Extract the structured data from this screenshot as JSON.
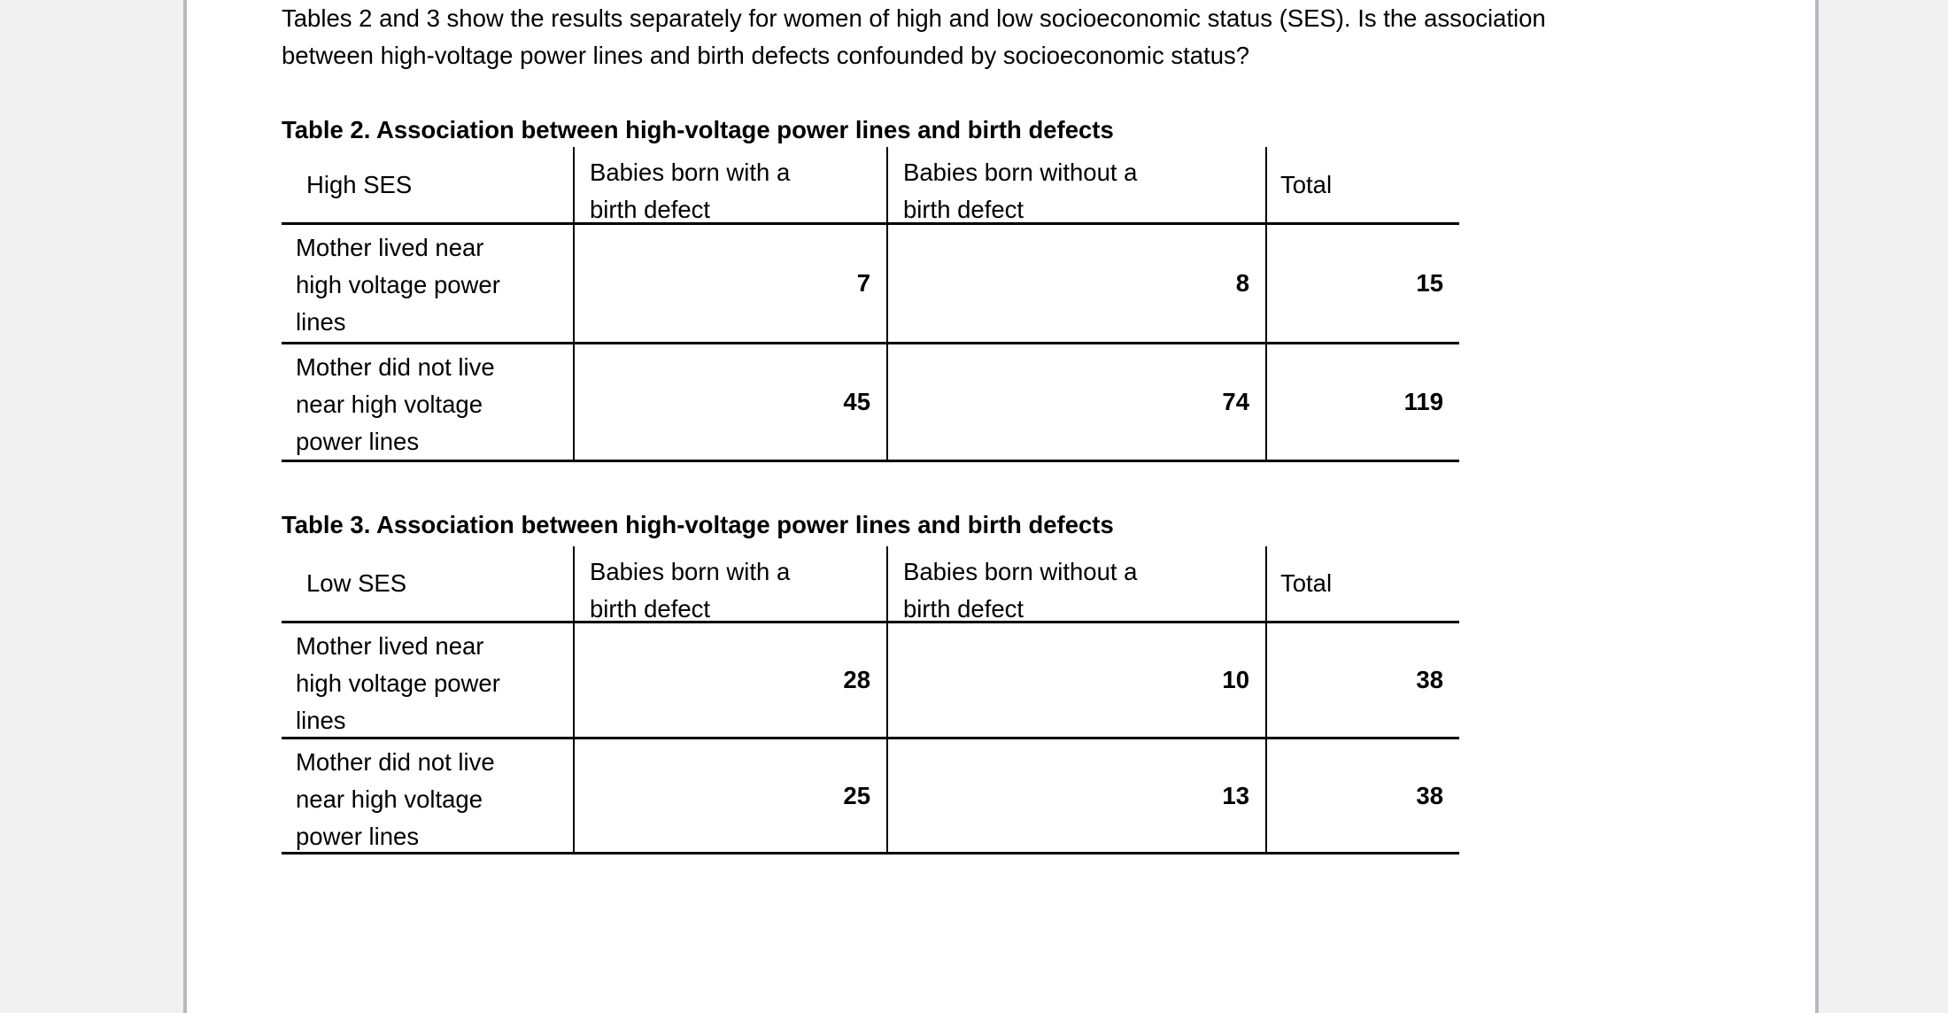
{
  "page": {
    "background_color": "#ffffff",
    "gutter_color": "#f1f1f2",
    "gutter_line_color": "#b5bac1",
    "border_color": "#000000"
  },
  "intro": {
    "lines": [
      "Tables 2 and 3 show the results separately for women of high and low socioeconomic status (SES). Is the association",
      "between high-voltage power lines and birth defects confounded by socioeconomic status?"
    ]
  },
  "tables": [
    {
      "title": "Table 2. Association between high-voltage power lines and birth defects",
      "group_label": "High SES",
      "col_headers": [
        [
          "Babies born with a",
          "birth defect"
        ],
        [
          "Babies born without a",
          "birth defect"
        ],
        [
          "Total"
        ]
      ],
      "rows": [
        {
          "label_lines": [
            "Mother lived near",
            "high voltage power",
            "lines"
          ],
          "with_defect": "7",
          "without_defect": "8",
          "total": "15"
        },
        {
          "label_lines": [
            "Mother did not live",
            "near high voltage",
            "power lines"
          ],
          "with_defect": "45",
          "without_defect": "74",
          "total": "119"
        }
      ]
    },
    {
      "title": "Table 3. Association between high-voltage power lines and birth defects",
      "group_label": "Low SES",
      "col_headers": [
        [
          "Babies born with a",
          "birth defect"
        ],
        [
          "Babies born without a",
          "birth defect"
        ],
        [
          "Total"
        ]
      ],
      "rows": [
        {
          "label_lines": [
            "Mother lived near",
            "high voltage power",
            "lines"
          ],
          "with_defect": "28",
          "without_defect": "10",
          "total": "38"
        },
        {
          "label_lines": [
            "Mother did not live",
            "near high voltage",
            "power lines"
          ],
          "with_defect": "25",
          "without_defect": "13",
          "total": "38"
        }
      ]
    }
  ]
}
